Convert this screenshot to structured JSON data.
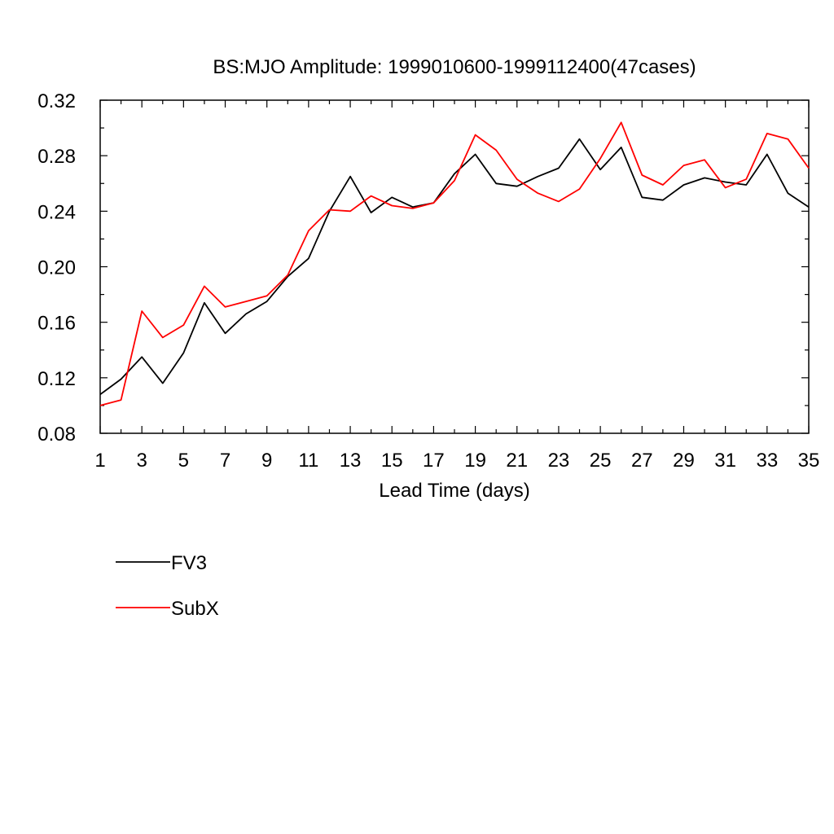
{
  "chart_data": {
    "type": "line",
    "title": "BS:MJO Amplitude: 1999010600-1999112400(47cases)",
    "xlabel": "Lead Time (days)",
    "ylabel": "",
    "xlim": [
      1,
      35
    ],
    "ylim": [
      0.08,
      0.32
    ],
    "xticks": [
      "1",
      "3",
      "5",
      "7",
      "9",
      "11",
      "13",
      "15",
      "17",
      "19",
      "21",
      "23",
      "25",
      "27",
      "29",
      "31",
      "33",
      "35"
    ],
    "yticks": [
      "0.08",
      "0.12",
      "0.16",
      "0.20",
      "0.24",
      "0.28",
      "0.32"
    ],
    "x": [
      1,
      2,
      3,
      4,
      5,
      6,
      7,
      8,
      9,
      10,
      11,
      12,
      13,
      14,
      15,
      16,
      17,
      18,
      19,
      20,
      21,
      22,
      23,
      24,
      25,
      26,
      27,
      28,
      29,
      30,
      31,
      32,
      33,
      34,
      35
    ],
    "series": [
      {
        "name": "FV3",
        "color": "#000000",
        "values": [
          0.108,
          0.119,
          0.135,
          0.116,
          0.138,
          0.174,
          0.152,
          0.166,
          0.175,
          0.193,
          0.206,
          0.24,
          0.265,
          0.239,
          0.25,
          0.243,
          0.246,
          0.267,
          0.281,
          0.26,
          0.258,
          0.265,
          0.271,
          0.292,
          0.27,
          0.286,
          0.25,
          0.248,
          0.259,
          0.264,
          0.261,
          0.259,
          0.281,
          0.253,
          0.243
        ]
      },
      {
        "name": "SubX",
        "color": "#ff0000",
        "values": [
          0.1,
          0.104,
          0.168,
          0.149,
          0.158,
          0.186,
          0.171,
          0.175,
          0.179,
          0.194,
          0.226,
          0.241,
          0.24,
          0.251,
          0.244,
          0.242,
          0.246,
          0.262,
          0.295,
          0.284,
          0.263,
          0.253,
          0.247,
          0.256,
          0.278,
          0.304,
          0.266,
          0.259,
          0.273,
          0.277,
          0.257,
          0.263,
          0.296,
          0.292,
          0.271
        ]
      }
    ],
    "grid": false,
    "legend_position": "below-left"
  }
}
